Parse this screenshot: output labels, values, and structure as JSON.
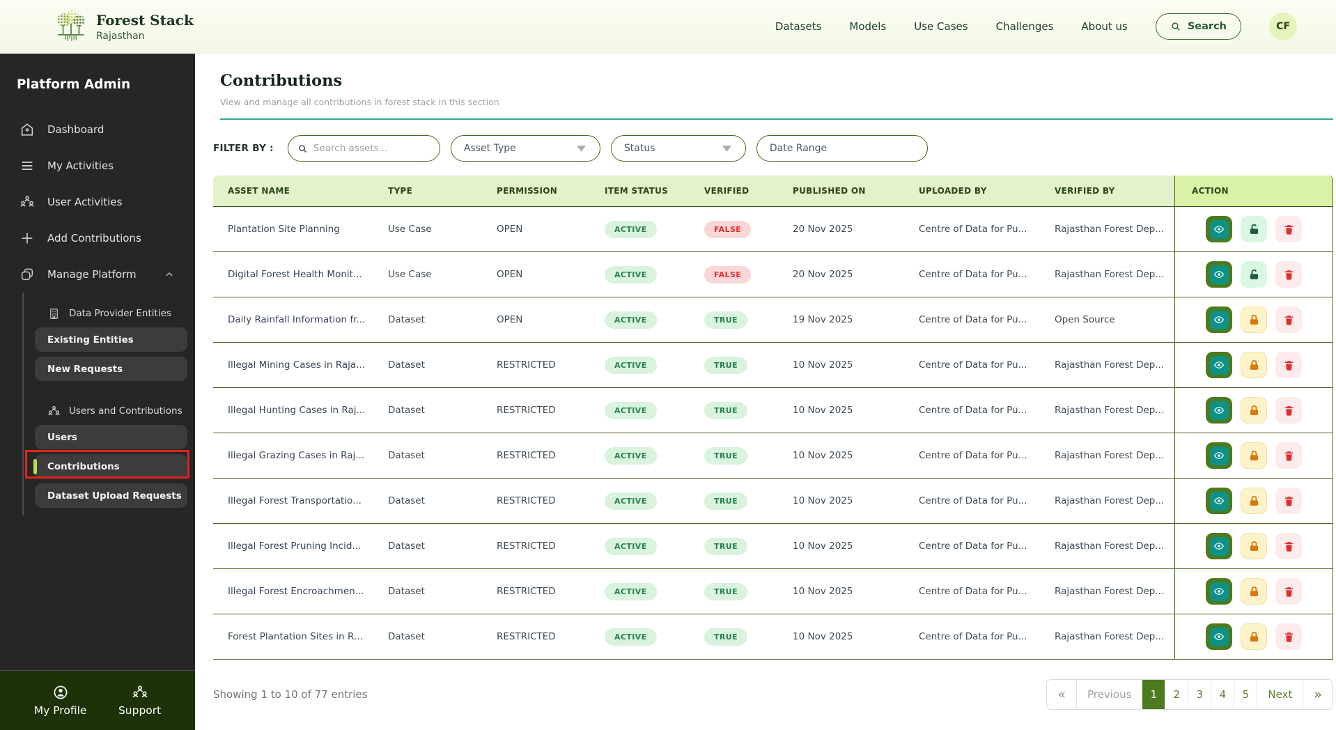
{
  "colors": {
    "accent_green": "#4c7a1e",
    "teal_divider": "#2fa98c",
    "table_header_green": "#e3f2cb",
    "action_header_green": "#daf2a6",
    "badge_green_bg": "#d9f3de",
    "badge_green_text": "#27824d",
    "badge_red_bg": "#f9d7d7",
    "badge_red_text": "#e02d2d",
    "sidebar_bg": "#262626",
    "sidebar_footer_bg": "#1d3208",
    "annotation_red": "#e0231c",
    "selected_accent": "#b6e049"
  },
  "topbar": {
    "brand_title": "Forest Stack",
    "brand_subtitle": "Rajasthan",
    "nav": [
      "Datasets",
      "Models",
      "Use Cases",
      "Challenges",
      "About us"
    ],
    "search_label": "Search",
    "avatar_initials": "CF"
  },
  "sidebar": {
    "title": "Platform Admin",
    "items": [
      {
        "label": "Dashboard"
      },
      {
        "label": "My Activities"
      },
      {
        "label": "User Activities"
      },
      {
        "label": "Add Contributions"
      },
      {
        "label": "Manage Platform"
      }
    ],
    "submenu": {
      "group1_label": "Data Provider Entities",
      "group1_items": [
        "Existing Entities",
        "New Requests"
      ],
      "group2_label": "Users and Contributions",
      "group2_items": [
        "Users",
        "Contributions",
        "Dataset Upload Requests"
      ],
      "selected_item": "Contributions"
    },
    "footer_items": [
      "My Profile",
      "Support"
    ]
  },
  "page": {
    "title": "Contributions",
    "subtitle": "View and manage all contributions in forest stack in this section"
  },
  "filters": {
    "label": "FILTER BY :",
    "search_placeholder": "Search assets...",
    "asset_type_label": "Asset Type",
    "status_label": "Status",
    "date_range_label": "Date Range"
  },
  "table": {
    "columns": [
      "ASSET NAME",
      "TYPE",
      "PERMISSION",
      "ITEM STATUS",
      "VERIFIED",
      "PUBLISHED ON",
      "UPLOADED BY",
      "VERIFIED BY",
      "ACTION"
    ],
    "rows": [
      {
        "name": "Plantation Site Planning",
        "type": "Use Case",
        "permission": "OPEN",
        "status": "ACTIVE",
        "verified": "FALSE",
        "published": "20 Nov 2025",
        "uploaded_by": "Centre of Data for Pu...",
        "verified_by": "Rajasthan Forest Dep...",
        "lock": "open"
      },
      {
        "name": "Digital Forest Health Monit...",
        "type": "Use Case",
        "permission": "OPEN",
        "status": "ACTIVE",
        "verified": "FALSE",
        "published": "20 Nov 2025",
        "uploaded_by": "Centre of Data for Pu...",
        "verified_by": "Rajasthan Forest Dep...",
        "lock": "open"
      },
      {
        "name": "Daily Rainfall Information fr...",
        "type": "Dataset",
        "permission": "OPEN",
        "status": "ACTIVE",
        "verified": "TRUE",
        "published": "19 Nov 2025",
        "uploaded_by": "Centre of Data for Pu...",
        "verified_by": "Open Source",
        "lock": "closed"
      },
      {
        "name": "Illegal Mining Cases in Raja...",
        "type": "Dataset",
        "permission": "RESTRICTED",
        "status": "ACTIVE",
        "verified": "TRUE",
        "published": "10 Nov 2025",
        "uploaded_by": "Centre of Data for Pu...",
        "verified_by": "Rajasthan Forest Dep...",
        "lock": "closed"
      },
      {
        "name": "Illegal Hunting Cases in Raj...",
        "type": "Dataset",
        "permission": "RESTRICTED",
        "status": "ACTIVE",
        "verified": "TRUE",
        "published": "10 Nov 2025",
        "uploaded_by": "Centre of Data for Pu...",
        "verified_by": "Rajasthan Forest Dep...",
        "lock": "closed"
      },
      {
        "name": "Illegal Grazing Cases in Raj...",
        "type": "Dataset",
        "permission": "RESTRICTED",
        "status": "ACTIVE",
        "verified": "TRUE",
        "published": "10 Nov 2025",
        "uploaded_by": "Centre of Data for Pu...",
        "verified_by": "Rajasthan Forest Dep...",
        "lock": "closed"
      },
      {
        "name": "Illegal Forest Transportatio...",
        "type": "Dataset",
        "permission": "RESTRICTED",
        "status": "ACTIVE",
        "verified": "TRUE",
        "published": "10 Nov 2025",
        "uploaded_by": "Centre of Data for Pu...",
        "verified_by": "Rajasthan Forest Dep...",
        "lock": "closed"
      },
      {
        "name": "Illegal Forest Pruning Incid...",
        "type": "Dataset",
        "permission": "RESTRICTED",
        "status": "ACTIVE",
        "verified": "TRUE",
        "published": "10 Nov 2025",
        "uploaded_by": "Centre of Data for Pu...",
        "verified_by": "Rajasthan Forest Dep...",
        "lock": "closed"
      },
      {
        "name": "Illegal Forest Encroachmen...",
        "type": "Dataset",
        "permission": "RESTRICTED",
        "status": "ACTIVE",
        "verified": "TRUE",
        "published": "10 Nov 2025",
        "uploaded_by": "Centre of Data for Pu...",
        "verified_by": "Rajasthan Forest Dep...",
        "lock": "closed"
      },
      {
        "name": "Forest Plantation Sites in R...",
        "type": "Dataset",
        "permission": "RESTRICTED",
        "status": "ACTIVE",
        "verified": "TRUE",
        "published": "10 Nov 2025",
        "uploaded_by": "Centre of Data for Pu...",
        "verified_by": "Rajasthan Forest Dep...",
        "lock": "closed"
      }
    ]
  },
  "footer": {
    "showing_text": "Showing 1 to 10 of 77 entries",
    "pagination": {
      "first": "«",
      "prev": "Previous",
      "pages": [
        "1",
        "2",
        "3",
        "4",
        "5"
      ],
      "active_page": "1",
      "next": "Next",
      "last": "»"
    }
  }
}
